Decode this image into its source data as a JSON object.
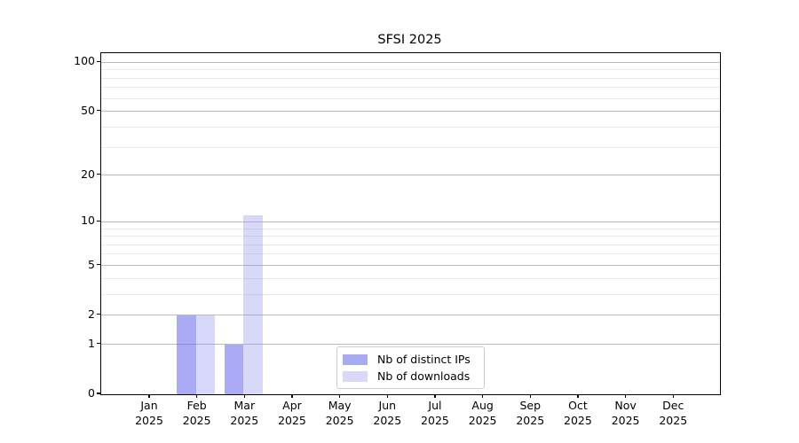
{
  "figure": {
    "background": "#ffffff"
  },
  "chart_data": {
    "type": "bar",
    "title": "SFSI 2025",
    "categories": [
      "Jan",
      "Feb",
      "Mar",
      "Apr",
      "May",
      "Jun",
      "Jul",
      "Aug",
      "Sep",
      "Oct",
      "Nov",
      "Dec"
    ],
    "year_label": "2025",
    "series": [
      {
        "name": "Nb of distinct IPs",
        "values": [
          0,
          2,
          1,
          0,
          0,
          0,
          0,
          0,
          0,
          0,
          0,
          0
        ],
        "color": "rgba(85,85,235,0.5)",
        "color_solid": "#aaaaf1"
      },
      {
        "name": "Nb of downloads",
        "values": [
          0,
          2,
          11,
          0,
          0,
          0,
          0,
          0,
          0,
          0,
          0,
          0
        ],
        "color": "rgba(144,144,235,0.35)",
        "color_solid": "#d8d8f7"
      }
    ],
    "xlabel": "",
    "ylabel": "",
    "yscale": "log1p",
    "ylim": [
      0,
      114
    ],
    "yticks": [
      0,
      1,
      2,
      5,
      10,
      20,
      50,
      100
    ],
    "minor_yticks": [
      3,
      4,
      6,
      7,
      8,
      9,
      30,
      40,
      60,
      70,
      80,
      90
    ],
    "grid": true,
    "legend_position": "lower-center-inside",
    "colors": {
      "spine": "#000000",
      "grid_major": "#bcbcbc",
      "grid_minor": "#e9e9e9",
      "tick_label": "#000000"
    }
  }
}
